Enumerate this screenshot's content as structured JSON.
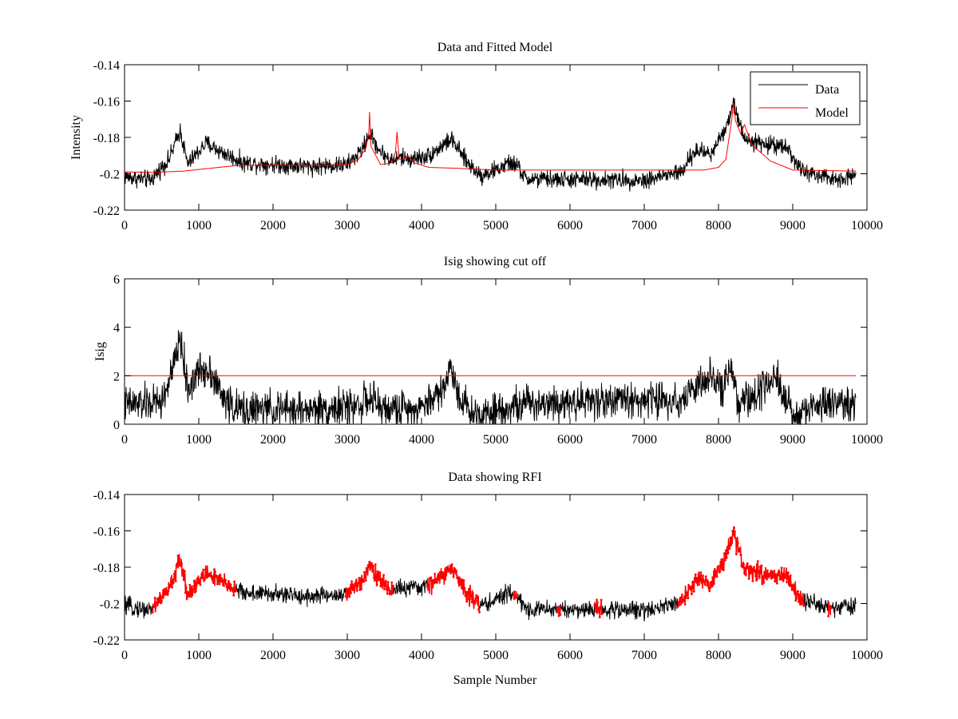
{
  "chart_data": [
    {
      "type": "line",
      "title": "Data and Fitted Model",
      "xlabel": "",
      "ylabel": "Intensity",
      "xlim": [
        0,
        10000
      ],
      "ylim": [
        -0.22,
        -0.14
      ],
      "xticks": [
        0,
        1000,
        2000,
        3000,
        4000,
        5000,
        6000,
        7000,
        8000,
        9000,
        10000
      ],
      "yticks": [
        -0.22,
        -0.2,
        -0.18,
        -0.16,
        -0.14
      ],
      "xtick_labels": [
        "0",
        "1000",
        "2000",
        "3000",
        "4000",
        "5000",
        "6000",
        "7000",
        "8000",
        "9000",
        "10000"
      ],
      "ytick_labels": [
        "-0.22",
        "-0.2",
        "-0.18",
        "-0.16",
        "-0.14"
      ],
      "legend": {
        "placement": "top-right",
        "entries": [
          {
            "label": "Data",
            "color": "#000000"
          },
          {
            "label": "Model",
            "color": "#ff0000"
          }
        ]
      },
      "x_max_sample": 9850,
      "series": [
        {
          "name": "Data",
          "color": "#000000",
          "noise": 0.0045,
          "envelope": [
            [
              0,
              -0.2015
            ],
            [
              350,
              -0.2035
            ],
            [
              600,
              -0.192
            ],
            [
              750,
              -0.176
            ],
            [
              850,
              -0.195
            ],
            [
              950,
              -0.19
            ],
            [
              1100,
              -0.183
            ],
            [
              1300,
              -0.188
            ],
            [
              1600,
              -0.194
            ],
            [
              2500,
              -0.196
            ],
            [
              3000,
              -0.195
            ],
            [
              3200,
              -0.187
            ],
            [
              3300,
              -0.178
            ],
            [
              3450,
              -0.188
            ],
            [
              3600,
              -0.193
            ],
            [
              3700,
              -0.191
            ],
            [
              3850,
              -0.192
            ],
            [
              4100,
              -0.19
            ],
            [
              4400,
              -0.181
            ],
            [
              4600,
              -0.193
            ],
            [
              4800,
              -0.201
            ],
            [
              5000,
              -0.198
            ],
            [
              5200,
              -0.194
            ],
            [
              5300,
              -0.196
            ],
            [
              5400,
              -0.203
            ],
            [
              7000,
              -0.2035
            ],
            [
              7500,
              -0.199
            ],
            [
              7700,
              -0.187
            ],
            [
              7900,
              -0.189
            ],
            [
              8100,
              -0.174
            ],
            [
              8200,
              -0.162
            ],
            [
              8350,
              -0.18
            ],
            [
              8600,
              -0.184
            ],
            [
              8900,
              -0.184
            ],
            [
              9100,
              -0.198
            ],
            [
              9500,
              -0.203
            ],
            [
              9850,
              -0.201
            ]
          ]
        },
        {
          "name": "Model",
          "color": "#ff0000",
          "noise": 0,
          "envelope": [
            [
              0,
              -0.199
            ],
            [
              400,
              -0.1992
            ],
            [
              800,
              -0.1985
            ],
            [
              1500,
              -0.1955
            ],
            [
              2000,
              -0.1952
            ],
            [
              2600,
              -0.1955
            ],
            [
              3000,
              -0.195
            ],
            [
              3150,
              -0.192
            ],
            [
              3250,
              -0.186
            ],
            [
              3290,
              -0.177
            ],
            [
              3300,
              -0.166
            ],
            [
              3320,
              -0.185
            ],
            [
              3450,
              -0.195
            ],
            [
              3600,
              -0.194
            ],
            [
              3650,
              -0.188
            ],
            [
              3670,
              -0.177
            ],
            [
              3700,
              -0.192
            ],
            [
              3760,
              -0.192
            ],
            [
              3820,
              -0.19
            ],
            [
              3900,
              -0.194
            ],
            [
              4100,
              -0.1965
            ],
            [
              4500,
              -0.197
            ],
            [
              5000,
              -0.198
            ],
            [
              6000,
              -0.198
            ],
            [
              7000,
              -0.198
            ],
            [
              7800,
              -0.198
            ],
            [
              8000,
              -0.1965
            ],
            [
              8100,
              -0.192
            ],
            [
              8180,
              -0.17
            ],
            [
              8200,
              -0.161
            ],
            [
              8230,
              -0.171
            ],
            [
              8300,
              -0.178
            ],
            [
              8350,
              -0.173
            ],
            [
              8450,
              -0.184
            ],
            [
              8700,
              -0.193
            ],
            [
              9000,
              -0.198
            ],
            [
              9850,
              -0.1985
            ]
          ]
        }
      ]
    },
    {
      "type": "line",
      "title": "Isig showing cut off",
      "xlabel": "",
      "ylabel": "Isig",
      "xlim": [
        0,
        10000
      ],
      "ylim": [
        0,
        6
      ],
      "xticks": [
        0,
        1000,
        2000,
        3000,
        4000,
        5000,
        6000,
        7000,
        8000,
        9000,
        10000
      ],
      "yticks": [
        0,
        2,
        4,
        6
      ],
      "xtick_labels": [
        "0",
        "1000",
        "2000",
        "3000",
        "4000",
        "5000",
        "6000",
        "7000",
        "8000",
        "9000",
        "10000"
      ],
      "ytick_labels": [
        "0",
        "2",
        "4",
        "6"
      ],
      "x_max_sample": 9850,
      "cutoff": 2,
      "series": [
        {
          "name": "Isig",
          "color": "#000000",
          "noise": 0.7,
          "envelope": [
            [
              0,
              0.8
            ],
            [
              500,
              0.9
            ],
            [
              650,
              2.2
            ],
            [
              750,
              3.6
            ],
            [
              850,
              1.4
            ],
            [
              1000,
              2.2
            ],
            [
              1150,
              2.3
            ],
            [
              1300,
              1.2
            ],
            [
              1500,
              0.6
            ],
            [
              2500,
              0.6
            ],
            [
              3000,
              0.7
            ],
            [
              3300,
              1.0
            ],
            [
              3500,
              0.6
            ],
            [
              4000,
              0.7
            ],
            [
              4300,
              1.5
            ],
            [
              4400,
              2.4
            ],
            [
              4500,
              1.2
            ],
            [
              4700,
              0.4
            ],
            [
              5000,
              0.6
            ],
            [
              5500,
              0.9
            ],
            [
              6500,
              1.0
            ],
            [
              7500,
              1.0
            ],
            [
              7700,
              1.6
            ],
            [
              7900,
              1.8
            ],
            [
              8050,
              1.4
            ],
            [
              8150,
              2.6
            ],
            [
              8250,
              0.8
            ],
            [
              8500,
              1.2
            ],
            [
              8800,
              1.8
            ],
            [
              9000,
              0.3
            ],
            [
              9300,
              0.8
            ],
            [
              9850,
              0.9
            ]
          ]
        },
        {
          "name": "Cut off",
          "color": "#ff0000",
          "noise": 0,
          "envelope": [
            [
              0,
              2
            ],
            [
              9850,
              2
            ]
          ]
        }
      ]
    },
    {
      "type": "line",
      "title": "Data showing RFI",
      "xlabel": "Sample Number",
      "ylabel": "",
      "xlim": [
        0,
        10000
      ],
      "ylim": [
        -0.22,
        -0.14
      ],
      "xticks": [
        0,
        1000,
        2000,
        3000,
        4000,
        5000,
        6000,
        7000,
        8000,
        9000,
        10000
      ],
      "yticks": [
        -0.22,
        -0.2,
        -0.18,
        -0.16,
        -0.14
      ],
      "xtick_labels": [
        "0",
        "1000",
        "2000",
        "3000",
        "4000",
        "5000",
        "6000",
        "7000",
        "8000",
        "9000",
        "10000"
      ],
      "ytick_labels": [
        "-0.22",
        "-0.2",
        "-0.18",
        "-0.16",
        "-0.14"
      ],
      "x_max_sample": 9850,
      "series": [
        {
          "name": "Data",
          "color": "#000000",
          "noise": 0.0045,
          "envelope": [
            [
              0,
              -0.2015
            ],
            [
              350,
              -0.2035
            ],
            [
              600,
              -0.192
            ],
            [
              750,
              -0.176
            ],
            [
              850,
              -0.195
            ],
            [
              950,
              -0.19
            ],
            [
              1100,
              -0.183
            ],
            [
              1300,
              -0.188
            ],
            [
              1600,
              -0.194
            ],
            [
              2500,
              -0.196
            ],
            [
              3000,
              -0.195
            ],
            [
              3200,
              -0.187
            ],
            [
              3300,
              -0.178
            ],
            [
              3450,
              -0.188
            ],
            [
              3600,
              -0.193
            ],
            [
              3700,
              -0.191
            ],
            [
              3850,
              -0.192
            ],
            [
              4100,
              -0.19
            ],
            [
              4400,
              -0.181
            ],
            [
              4600,
              -0.193
            ],
            [
              4800,
              -0.201
            ],
            [
              5000,
              -0.198
            ],
            [
              5200,
              -0.194
            ],
            [
              5300,
              -0.196
            ],
            [
              5400,
              -0.203
            ],
            [
              7000,
              -0.2035
            ],
            [
              7500,
              -0.199
            ],
            [
              7700,
              -0.187
            ],
            [
              7900,
              -0.189
            ],
            [
              8100,
              -0.174
            ],
            [
              8200,
              -0.162
            ],
            [
              8350,
              -0.18
            ],
            [
              8600,
              -0.184
            ],
            [
              8900,
              -0.184
            ],
            [
              9100,
              -0.198
            ],
            [
              9500,
              -0.203
            ],
            [
              9850,
              -0.201
            ]
          ]
        }
      ],
      "rfi_flagged_ranges": [
        [
          380,
          1500
        ],
        [
          2980,
          3620
        ],
        [
          4080,
          4780
        ],
        [
          5240,
          5290
        ],
        [
          5830,
          5870
        ],
        [
          6330,
          6430
        ],
        [
          7450,
          9150
        ],
        [
          9480,
          9520
        ]
      ],
      "rfi_color": "#ff0000"
    }
  ]
}
